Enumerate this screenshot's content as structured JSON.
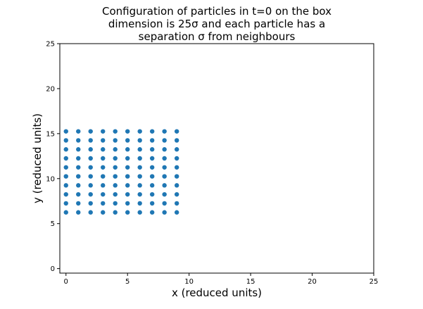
{
  "chart_data": {
    "type": "scatter",
    "title_lines": [
      "Configuration of particles in t=0 on the box",
      "dimension is 25σ and each particle has a",
      "separation σ from neighbours"
    ],
    "xlabel": "x (reduced units)",
    "ylabel": "y (reduced units)",
    "xlim": [
      -0.5,
      25
    ],
    "ylim": [
      -0.5,
      25
    ],
    "x_ticks": [
      0,
      5,
      10,
      15,
      20,
      25
    ],
    "y_ticks": [
      0,
      5,
      10,
      15,
      20,
      25
    ],
    "x_tick_labels": [
      "0",
      "5",
      "10",
      "15",
      "20",
      "25"
    ],
    "y_tick_labels": [
      "0",
      "5",
      "10",
      "15",
      "20",
      "25"
    ],
    "grid": false,
    "marker_color": "#1f77b4",
    "x": [
      0,
      1,
      2,
      3,
      4,
      5,
      6,
      7,
      8,
      9,
      0,
      1,
      2,
      3,
      4,
      5,
      6,
      7,
      8,
      9,
      0,
      1,
      2,
      3,
      4,
      5,
      6,
      7,
      8,
      9,
      0,
      1,
      2,
      3,
      4,
      5,
      6,
      7,
      8,
      9,
      0,
      1,
      2,
      3,
      4,
      5,
      6,
      7,
      8,
      9,
      0,
      1,
      2,
      3,
      4,
      5,
      6,
      7,
      8,
      9,
      0,
      1,
      2,
      3,
      4,
      5,
      6,
      7,
      8,
      9,
      0,
      1,
      2,
      3,
      4,
      5,
      6,
      7,
      8,
      9,
      0,
      1,
      2,
      3,
      4,
      5,
      6,
      7,
      8,
      9,
      0,
      1,
      2,
      3,
      4,
      5,
      6,
      7,
      8,
      9
    ],
    "y": [
      6.25,
      6.25,
      6.25,
      6.25,
      6.25,
      6.25,
      6.25,
      6.25,
      6.25,
      6.25,
      7.25,
      7.25,
      7.25,
      7.25,
      7.25,
      7.25,
      7.25,
      7.25,
      7.25,
      7.25,
      8.25,
      8.25,
      8.25,
      8.25,
      8.25,
      8.25,
      8.25,
      8.25,
      8.25,
      8.25,
      9.25,
      9.25,
      9.25,
      9.25,
      9.25,
      9.25,
      9.25,
      9.25,
      9.25,
      9.25,
      10.25,
      10.25,
      10.25,
      10.25,
      10.25,
      10.25,
      10.25,
      10.25,
      10.25,
      10.25,
      11.25,
      11.25,
      11.25,
      11.25,
      11.25,
      11.25,
      11.25,
      11.25,
      11.25,
      11.25,
      12.25,
      12.25,
      12.25,
      12.25,
      12.25,
      12.25,
      12.25,
      12.25,
      12.25,
      12.25,
      13.25,
      13.25,
      13.25,
      13.25,
      13.25,
      13.25,
      13.25,
      13.25,
      13.25,
      13.25,
      14.25,
      14.25,
      14.25,
      14.25,
      14.25,
      14.25,
      14.25,
      14.25,
      14.25,
      14.25,
      15.25,
      15.25,
      15.25,
      15.25,
      15.25,
      15.25,
      15.25,
      15.25,
      15.25,
      15.25
    ]
  }
}
